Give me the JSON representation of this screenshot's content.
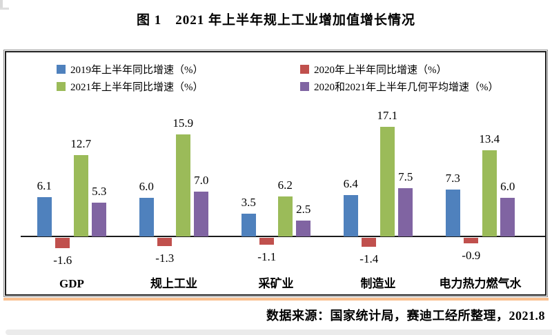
{
  "colors": {
    "axis": "#1a1a1a",
    "frame_border": "#1f1f1f",
    "frame_outer_line": "#8c8c8c",
    "frame_underline": "#f9bf8f"
  },
  "chart_data": {
    "type": "bar",
    "title": "图 1　2021 年上半年规上工业增加值增长情况",
    "categories": [
      "GDP",
      "规上工业",
      "采矿业",
      "制造业",
      "电力热力燃气水"
    ],
    "series": [
      {
        "name": "2019年上半年同比增速（%）",
        "color": "#4f81bd",
        "values": [
          6.1,
          6.0,
          3.5,
          6.4,
          7.3
        ]
      },
      {
        "name": "2020年上半年同比增速（%）",
        "color": "#c0504d",
        "values": [
          -1.6,
          -1.3,
          -1.1,
          -1.4,
          -0.9
        ]
      },
      {
        "name": "2021年上半年同比增速（%）",
        "color": "#9bbb59",
        "values": [
          12.7,
          15.9,
          6.2,
          17.1,
          13.4
        ]
      },
      {
        "name": "2020和2021年上半年几何平均增速（%）",
        "color": "#8064a2",
        "values": [
          5.3,
          7.0,
          2.5,
          7.5,
          6.0
        ]
      }
    ],
    "ylim": [
      -2.5,
      18
    ],
    "grid": false,
    "legend_position": "top-inside",
    "data_labels": true,
    "xlabel": "",
    "ylabel": "",
    "source_note": "数据来源：国家统计局，赛迪工经所整理，2021.8"
  }
}
